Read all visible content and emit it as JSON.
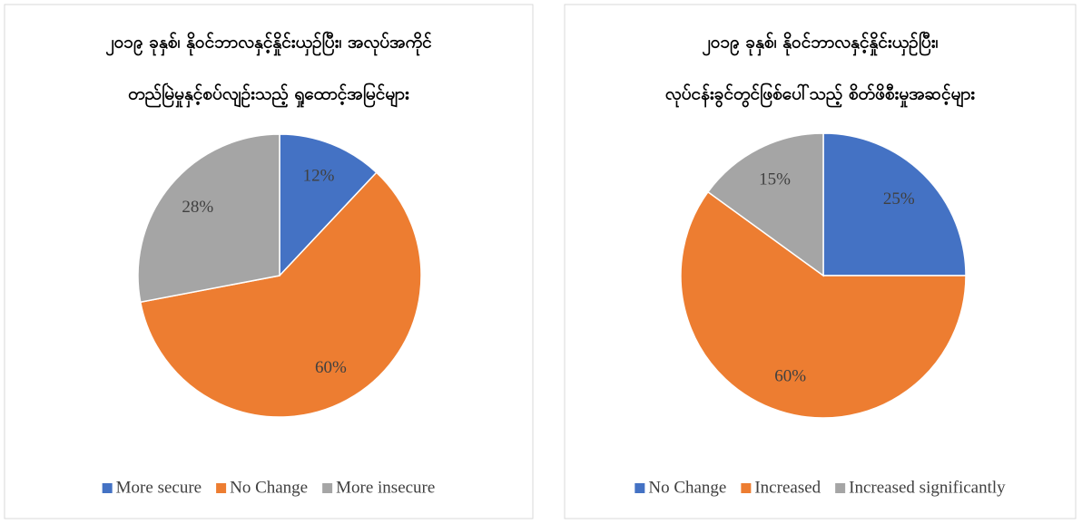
{
  "chart_data": [
    {
      "type": "pie",
      "title_lines": [
        "၂၀၁၉ ခုနှစ်၊ နိုဝင်ဘာလနှင့်နှိုင်းယှဉ်ပြီး၊ အလုပ်အကိုင်",
        "တည်မြဲမှုနှင့်စပ်လျဉ်းသည့် ရှုထောင့်အမြင်များ"
      ],
      "categories": [
        "More secure",
        "No Change",
        "More insecure"
      ],
      "values": [
        12,
        60,
        28
      ],
      "value_labels": [
        "12%",
        "60%",
        "28%"
      ],
      "colors": [
        "#4472c4",
        "#ed7d31",
        "#a5a5a5"
      ],
      "legend": "bottom"
    },
    {
      "type": "pie",
      "title_lines": [
        "၂၀၁၉ ခုနှစ်၊ နိုဝင်ဘာလနှင့်နှိုင်းယှဉ်ပြီး၊",
        "လုပ်ငန်းခွင်တွင်ဖြစ်ပေါ်သည့် စိတ်ဖိစီးမှုအဆင့်များ"
      ],
      "categories": [
        "No Change",
        "Increased",
        "Increased significantly"
      ],
      "values": [
        25,
        60,
        15
      ],
      "value_labels": [
        "25%",
        "60%",
        "15%"
      ],
      "colors": [
        "#4472c4",
        "#ed7d31",
        "#a5a5a5"
      ],
      "legend": "bottom"
    }
  ]
}
